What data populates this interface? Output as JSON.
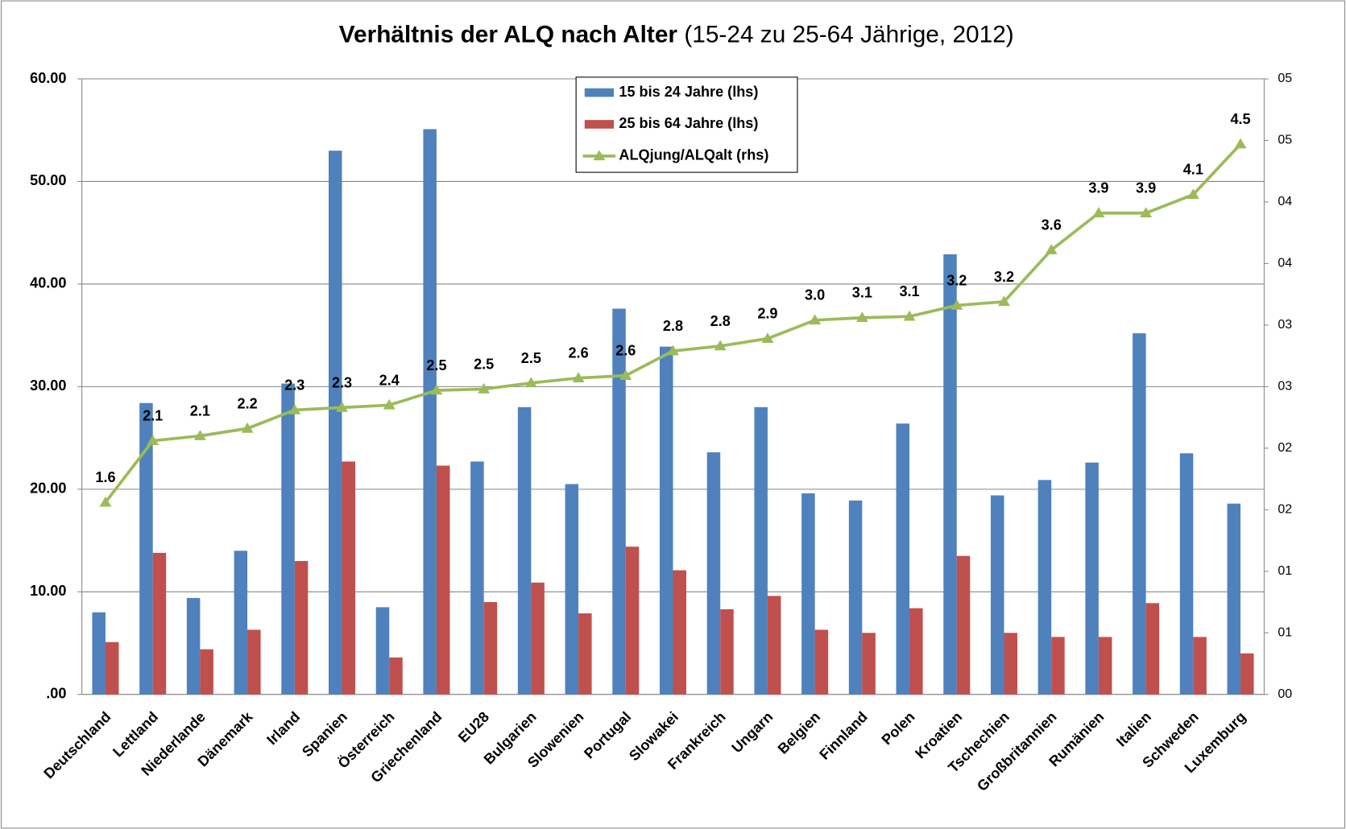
{
  "chart_data": {
    "type": "bar",
    "title": "Verhältnis der ALQ nach Alter",
    "subtitle": "(15-24 zu 25-64 Jährige, 2012)",
    "categories": [
      "Deutschland",
      "Lettland",
      "Niederlande",
      "Dänemark",
      "Irland",
      "Spanien",
      "Österreich",
      "Griechenland",
      "EU28",
      "Bulgarien",
      "Slowenien",
      "Portugal",
      "Slowakei",
      "Frankreich",
      "Ungarn",
      "Belgien",
      "Finnland",
      "Polen",
      "Kroatien",
      "Tschechien",
      "Großbritannien",
      "Rumänien",
      "Italien",
      "Schweden",
      "Luxemburg"
    ],
    "series": [
      {
        "name": "15 bis 24 Jahre (lhs)",
        "type": "bar",
        "color": "#4f81bd",
        "values": [
          8.0,
          28.4,
          9.4,
          14.0,
          30.3,
          53.0,
          8.5,
          55.1,
          22.7,
          28.0,
          20.5,
          37.6,
          33.9,
          23.6,
          28.0,
          19.6,
          18.9,
          26.4,
          42.9,
          19.4,
          20.9,
          22.6,
          35.2,
          23.5,
          18.6
        ]
      },
      {
        "name": "25 bis 64 Jahre (lhs)",
        "type": "bar",
        "color": "#c0504d",
        "values": [
          5.1,
          13.8,
          4.4,
          6.3,
          13.0,
          22.7,
          3.6,
          22.3,
          9.0,
          10.9,
          7.9,
          14.4,
          12.1,
          8.3,
          9.6,
          6.3,
          6.0,
          8.4,
          13.5,
          6.0,
          5.6,
          5.6,
          8.9,
          5.6,
          4.0
        ]
      },
      {
        "name": "ALQjung/ALQalt (rhs)",
        "type": "line",
        "axis": "y2",
        "color": "#9bbb59",
        "values": [
          1.56,
          2.06,
          2.1,
          2.16,
          2.31,
          2.33,
          2.35,
          2.47,
          2.48,
          2.53,
          2.57,
          2.59,
          2.79,
          2.83,
          2.89,
          3.04,
          3.06,
          3.07,
          3.16,
          3.19,
          3.61,
          3.91,
          3.91,
          4.06,
          4.47
        ],
        "value_labels": [
          "1.6",
          "2.1",
          "2.1",
          "2.2",
          "2.3",
          "2.3",
          "2.4",
          "2.5",
          "2.5",
          "2.5",
          "2.6",
          "2.6",
          "2.8",
          "2.8",
          "2.9",
          "3.0",
          "3.1",
          "3.1",
          "3.2",
          "3.2",
          "3.6",
          "3.9",
          "3.9",
          "4.1",
          "4.5"
        ]
      }
    ],
    "ylim": [
      0,
      60
    ],
    "yticks": [
      {
        "value": 0,
        "label": ".00"
      },
      {
        "value": 10,
        "label": "10.00"
      },
      {
        "value": 20,
        "label": "20.00"
      },
      {
        "value": 30,
        "label": "30.00"
      },
      {
        "value": 40,
        "label": "40.00"
      },
      {
        "value": 50,
        "label": "50.00"
      },
      {
        "value": 60,
        "label": "60.00"
      }
    ],
    "y2lim": [
      0,
      5
    ],
    "y2ticks": [
      {
        "value": 0,
        "label": "00"
      },
      {
        "value": 0.5,
        "label": "01"
      },
      {
        "value": 1,
        "label": "01"
      },
      {
        "value": 1.5,
        "label": "02"
      },
      {
        "value": 2,
        "label": "02"
      },
      {
        "value": 2.5,
        "label": "03"
      },
      {
        "value": 3,
        "label": "03"
      },
      {
        "value": 3.5,
        "label": "04"
      },
      {
        "value": 4,
        "label": "04"
      },
      {
        "value": 4.5,
        "label": "05"
      },
      {
        "value": 5,
        "label": "05"
      }
    ],
    "grid": true,
    "legend": "top"
  }
}
